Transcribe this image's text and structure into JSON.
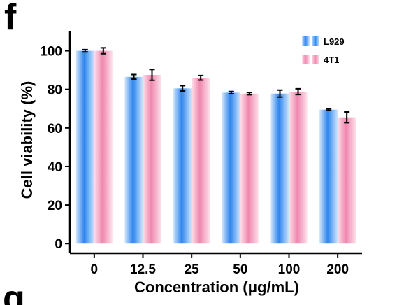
{
  "panel": {
    "letter": "f",
    "next_letter": "g"
  },
  "colors": {
    "L929": {
      "dark": "#2d86ee",
      "light": "#cfe4fb"
    },
    "4T1": {
      "dark": "#f087ae",
      "light": "#fde0ea"
    },
    "axis": "#000000"
  },
  "chart_data": {
    "type": "bar",
    "xlabel": "Concentration (μg/mL)",
    "ylabel": "Cell viability (%)",
    "categories": [
      "0",
      "12.5",
      "25",
      "50",
      "100",
      "200"
    ],
    "ylim": [
      -5,
      110
    ],
    "yticks": [
      0,
      20,
      40,
      60,
      80,
      100
    ],
    "grid": false,
    "legend": "top-right",
    "series": [
      {
        "name": "L929",
        "values": [
          100,
          86.5,
          80.5,
          78.3,
          77.8,
          69.5
        ],
        "errors": [
          0.6,
          1.2,
          1.4,
          0.6,
          1.8,
          0.4
        ]
      },
      {
        "name": "4T1",
        "values": [
          100,
          87.5,
          86,
          77.8,
          78.8,
          65.5
        ],
        "errors": [
          1.5,
          2.8,
          1.2,
          0.6,
          1.5,
          2.8
        ]
      }
    ]
  }
}
